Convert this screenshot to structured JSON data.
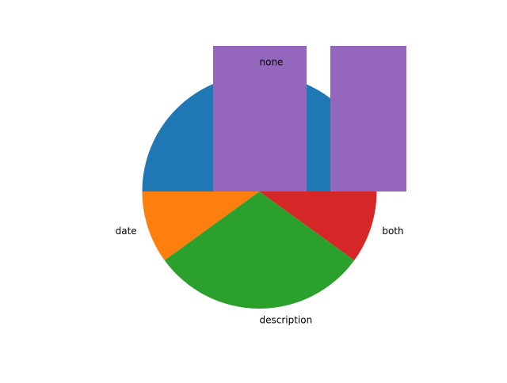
{
  "chart_data": {
    "type": "pie",
    "labels": [
      "none",
      "date",
      "description",
      "both"
    ],
    "values": [
      50,
      10,
      30,
      10
    ],
    "colors": [
      "#1f77b4",
      "#ff7f0e",
      "#2ca02c",
      "#d62728"
    ],
    "start_angle_deg": 0,
    "counterclockwise": true,
    "overlay": {
      "type": "bar",
      "color": "#9467bd",
      "values": [
        1,
        1
      ]
    }
  }
}
